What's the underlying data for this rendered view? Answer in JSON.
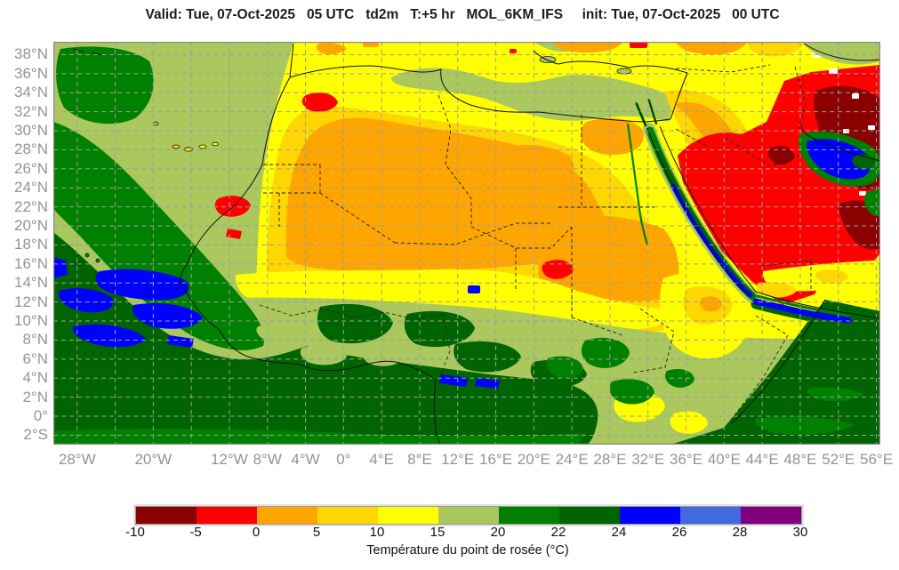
{
  "title": "Valid: Tue, 07-Oct-2025   05 UTC   td2m   T:+5 hr   MOL_6KM_IFS     init: Tue, 07-Oct-2025   00 UTC",
  "axes": {
    "lat": [
      {
        "label": "38°N",
        "deg": 38
      },
      {
        "label": "36°N",
        "deg": 36
      },
      {
        "label": "34°N",
        "deg": 34
      },
      {
        "label": "32°N",
        "deg": 32
      },
      {
        "label": "30°N",
        "deg": 30
      },
      {
        "label": "28°N",
        "deg": 28
      },
      {
        "label": "26°N",
        "deg": 26
      },
      {
        "label": "24°N",
        "deg": 24
      },
      {
        "label": "22°N",
        "deg": 22
      },
      {
        "label": "20°N",
        "deg": 20
      },
      {
        "label": "18°N",
        "deg": 18
      },
      {
        "label": "16°N",
        "deg": 16
      },
      {
        "label": "14°N",
        "deg": 14
      },
      {
        "label": "12°N",
        "deg": 12
      },
      {
        "label": "10°N",
        "deg": 10
      },
      {
        "label": "8°N",
        "deg": 8
      },
      {
        "label": "6°N",
        "deg": 6
      },
      {
        "label": "4°N",
        "deg": 4
      },
      {
        "label": "2°N",
        "deg": 2
      },
      {
        "label": "0°",
        "deg": 0
      },
      {
        "label": "2°S",
        "deg": -2
      }
    ],
    "lon": [
      {
        "label": "28°W",
        "deg": -28
      },
      {
        "label": "20°W",
        "deg": -20
      },
      {
        "label": "12°W",
        "deg": -12
      },
      {
        "label": "8°W",
        "deg": -8
      },
      {
        "label": "4°W",
        "deg": -4
      },
      {
        "label": "0°",
        "deg": 0
      },
      {
        "label": "4°E",
        "deg": 4
      },
      {
        "label": "8°E",
        "deg": 8
      },
      {
        "label": "12°E",
        "deg": 12
      },
      {
        "label": "16°E",
        "deg": 16
      },
      {
        "label": "20°E",
        "deg": 20
      },
      {
        "label": "24°E",
        "deg": 24
      },
      {
        "label": "28°E",
        "deg": 28
      },
      {
        "label": "32°E",
        "deg": 32
      },
      {
        "label": "36°E",
        "deg": 36
      },
      {
        "label": "40°E",
        "deg": 40
      },
      {
        "label": "44°E",
        "deg": 44
      },
      {
        "label": "48°E",
        "deg": 48
      },
      {
        "label": "52°E",
        "deg": 52
      },
      {
        "label": "56°E",
        "deg": 56
      }
    ]
  },
  "legend": {
    "caption": "Température du point de rosée (°C)",
    "ticks": [
      "-10",
      "-5",
      "0",
      "5",
      "10",
      "15",
      "20",
      "22",
      "24",
      "26",
      "28",
      "30"
    ],
    "colors": [
      "#8B0000",
      "#FF0000",
      "#FFA500",
      "#FFD700",
      "#FFFF00",
      "#AAC85E",
      "#008000",
      "#006400",
      "#0000FF",
      "#4169E1",
      "#800080"
    ]
  }
}
